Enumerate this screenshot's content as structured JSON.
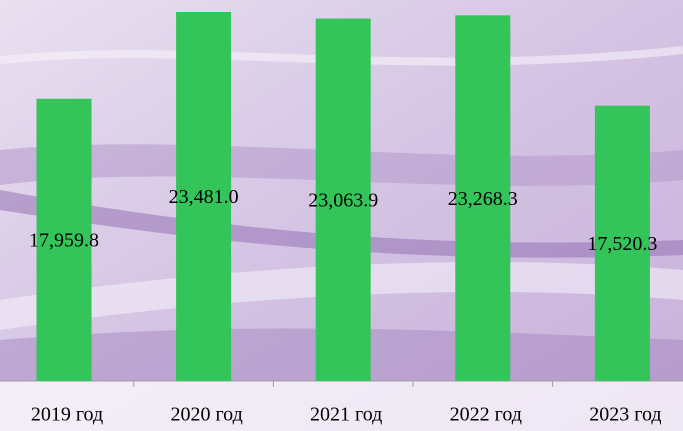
{
  "chart_data": {
    "type": "bar",
    "categories": [
      "2019 год",
      "2020 год",
      "2021 год",
      "2022 год",
      "2023 год"
    ],
    "values": [
      17959.8,
      23481.0,
      23063.9,
      23268.3,
      17520.3
    ],
    "value_labels": [
      "17,959.8",
      "23,481.0",
      "23,063.9",
      "23,268.3",
      "17,520.3"
    ],
    "color": "#33c45a"
  }
}
